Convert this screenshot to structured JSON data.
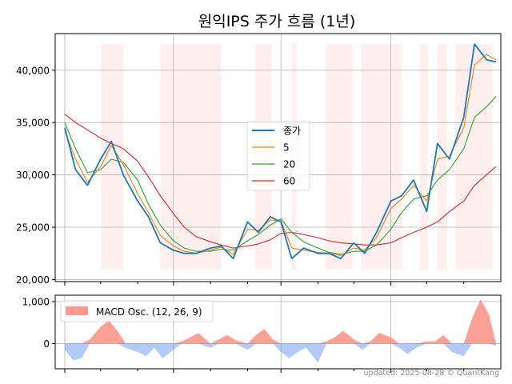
{
  "title": "원익IPS 주가 흐름 (1년)",
  "footer": "updated: 2025-08-28 © QuantKang",
  "colors": {
    "close": "#1f77b4",
    "ma5": "#ff7f0e",
    "ma20": "#2ca02c",
    "ma60": "#d62728",
    "macd_pos": "#fa8072",
    "macd_neg": "#6495ed",
    "shade": "#ffe4e1"
  },
  "chart_data": [
    {
      "type": "line",
      "title": "원익IPS 주가 흐름 (1년)",
      "x_range": [
        "2024-08-28",
        "2025-08-28"
      ],
      "ylim": [
        19800,
        43500
      ],
      "yticks": [
        20000,
        25000,
        30000,
        35000,
        40000
      ],
      "ytick_labels": [
        "20,000",
        "25,000",
        "30,000",
        "35,000",
        "40,000"
      ],
      "grid": true,
      "legend": {
        "placement": "center",
        "entries": [
          "종가",
          "5",
          "20",
          "60"
        ]
      },
      "x": [
        "2024-09-01",
        "2024-09-10",
        "2024-09-20",
        "2024-10-01",
        "2024-10-10",
        "2024-10-20",
        "2024-11-01",
        "2024-11-10",
        "2024-11-20",
        "2024-12-01",
        "2024-12-10",
        "2024-12-20",
        "2025-01-01",
        "2025-01-10",
        "2025-01-20",
        "2025-02-01",
        "2025-02-10",
        "2025-02-20",
        "2025-03-01",
        "2025-03-10",
        "2025-03-20",
        "2025-04-01",
        "2025-04-10",
        "2025-04-20",
        "2025-05-01",
        "2025-05-10",
        "2025-05-20",
        "2025-06-01",
        "2025-06-10",
        "2025-06-20",
        "2025-07-01",
        "2025-07-10",
        "2025-07-20",
        "2025-08-01",
        "2025-08-10",
        "2025-08-20",
        "2025-08-28"
      ],
      "series": [
        {
          "name": "종가",
          "values": [
            34500,
            30500,
            29000,
            31500,
            33200,
            30000,
            27500,
            26000,
            23500,
            22800,
            22500,
            22500,
            23000,
            23200,
            22000,
            25500,
            24500,
            26000,
            25500,
            22000,
            23000,
            22500,
            22500,
            22000,
            23500,
            22500,
            24500,
            27500,
            28000,
            29500,
            26500,
            33000,
            31500,
            35500,
            42500,
            41000,
            40800
          ]
        },
        {
          "name": "5",
          "values": [
            34200,
            31500,
            29300,
            30800,
            32800,
            31000,
            28200,
            26400,
            24200,
            23200,
            22700,
            22500,
            22800,
            23100,
            22400,
            24800,
            24700,
            25700,
            25600,
            23000,
            22800,
            22600,
            22500,
            22300,
            23000,
            22800,
            24000,
            26800,
            27700,
            29000,
            27500,
            31500,
            31800,
            34500,
            40500,
            41500,
            41000
          ]
        },
        {
          "name": "20",
          "values": [
            35000,
            32500,
            30200,
            30500,
            31500,
            31200,
            29500,
            27200,
            25200,
            23700,
            23000,
            22700,
            22700,
            22900,
            22800,
            23700,
            24300,
            25200,
            25800,
            24500,
            23600,
            23000,
            22600,
            22400,
            22700,
            22700,
            23300,
            24800,
            26400,
            27700,
            28000,
            29500,
            30500,
            32500,
            35500,
            36500,
            37500
          ]
        },
        {
          "name": "60",
          "values": [
            35800,
            35000,
            34300,
            33500,
            33000,
            32500,
            31300,
            29800,
            28000,
            26300,
            25000,
            24100,
            23600,
            23300,
            23000,
            23200,
            23400,
            23800,
            24400,
            24500,
            24300,
            24000,
            23700,
            23500,
            23400,
            23300,
            23300,
            23500,
            24000,
            24500,
            25000,
            25500,
            26500,
            27500,
            29000,
            30000,
            30800
          ]
        }
      ],
      "shaded_periods": [
        [
          "2024-10-01",
          "2024-10-20"
        ],
        [
          "2024-11-20",
          "2025-01-10"
        ],
        [
          "2025-02-07",
          "2025-02-21"
        ],
        [
          "2025-03-10",
          "2025-03-14"
        ],
        [
          "2025-04-07",
          "2025-04-30"
        ],
        [
          "2025-05-07",
          "2025-06-10"
        ],
        [
          "2025-06-25",
          "2025-07-02"
        ],
        [
          "2025-07-10",
          "2025-07-18"
        ],
        [
          "2025-07-25",
          "2025-08-25"
        ]
      ]
    },
    {
      "type": "area",
      "ylim": [
        -600,
        1150
      ],
      "yticks": [
        0,
        1000
      ],
      "ytick_labels": [
        "0",
        "1,000"
      ],
      "grid": true,
      "legend": {
        "placement": "top-left",
        "entries": [
          "MACD Osc. (12, 26, 9)"
        ]
      },
      "series": [
        {
          "name": "MACD Osc. (12, 26, 9)",
          "x": [
            "2024-09-01",
            "2024-09-08",
            "2024-09-15",
            "2024-09-22",
            "2024-10-01",
            "2024-10-08",
            "2024-10-15",
            "2024-10-22",
            "2024-11-01",
            "2024-11-08",
            "2024-11-15",
            "2024-11-22",
            "2024-12-01",
            "2024-12-08",
            "2024-12-15",
            "2024-12-22",
            "2025-01-01",
            "2025-01-08",
            "2025-01-15",
            "2025-01-22",
            "2025-02-01",
            "2025-02-08",
            "2025-02-15",
            "2025-02-22",
            "2025-03-01",
            "2025-03-08",
            "2025-03-15",
            "2025-03-22",
            "2025-04-01",
            "2025-04-08",
            "2025-04-15",
            "2025-04-22",
            "2025-05-01",
            "2025-05-08",
            "2025-05-15",
            "2025-05-22",
            "2025-06-01",
            "2025-06-08",
            "2025-06-15",
            "2025-06-22",
            "2025-07-01",
            "2025-07-08",
            "2025-07-15",
            "2025-07-22",
            "2025-08-01",
            "2025-08-08",
            "2025-08-15",
            "2025-08-22",
            "2025-08-28"
          ],
          "values": [
            -150,
            -400,
            -350,
            100,
            400,
            550,
            300,
            -100,
            -200,
            -300,
            -100,
            -350,
            -150,
            50,
            150,
            250,
            -100,
            100,
            200,
            80,
            -150,
            200,
            350,
            100,
            -200,
            -350,
            -200,
            -100,
            -450,
            50,
            150,
            300,
            100,
            -150,
            50,
            250,
            150,
            -100,
            -250,
            -100,
            50,
            50,
            200,
            -200,
            -300,
            600,
            1050,
            700,
            -50
          ]
        }
      ]
    }
  ]
}
